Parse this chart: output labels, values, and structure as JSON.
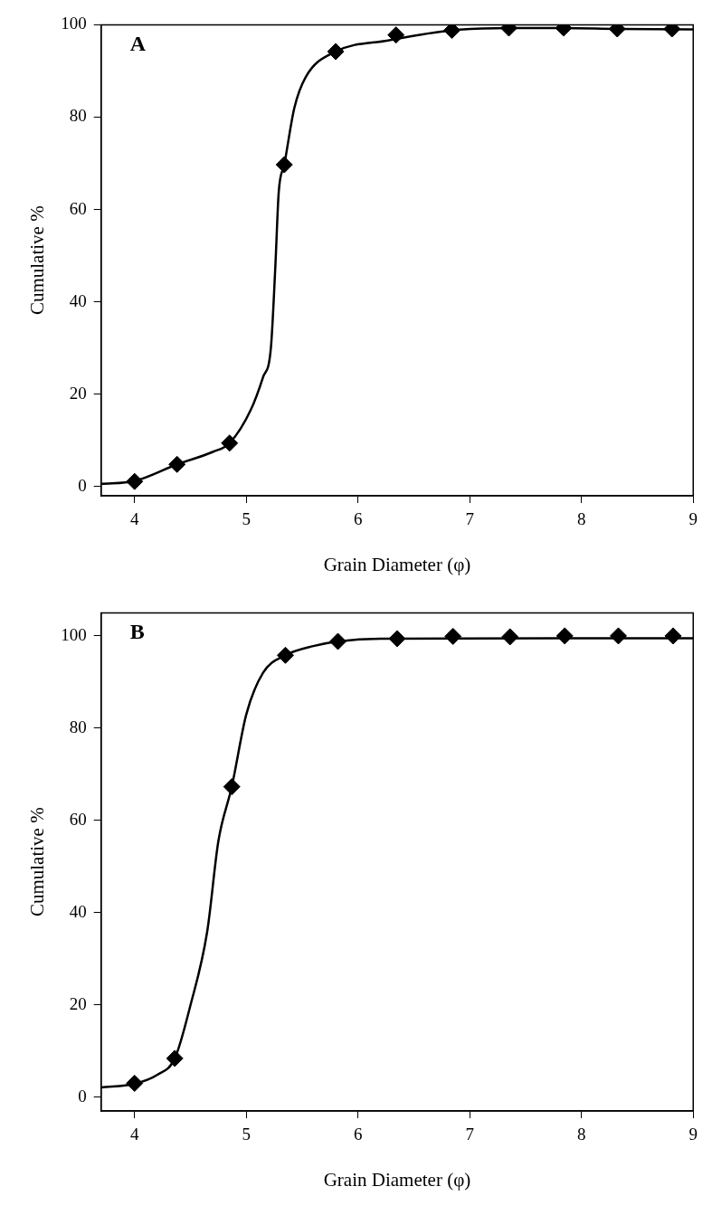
{
  "chart_data": [
    {
      "type": "scatter",
      "xlabel": "Grain Diameter (φ)",
      "ylabel": "Cumulative %",
      "annotations": [
        "A"
      ],
      "xlim": [
        3.7,
        9
      ],
      "xticks": [
        4,
        5,
        6,
        7,
        8,
        9
      ],
      "ylim": [
        -2,
        100
      ],
      "yticks": [
        0,
        20,
        40,
        60,
        80,
        100
      ],
      "grid": false,
      "legend": false,
      "marker": "diamond",
      "series": [
        {
          "type": "scatter",
          "color": "#000000",
          "x": [
            4.0,
            4.38,
            4.85,
            5.34,
            5.8,
            6.34,
            6.84,
            7.35,
            7.84,
            8.32,
            8.81
          ],
          "values": [
            1.1,
            4.8,
            9.4,
            69.7,
            94.2,
            97.8,
            98.8,
            99.3,
            99.3,
            99.1,
            99.1
          ]
        },
        {
          "type": "line",
          "color": "#000000",
          "marker": "none",
          "x": [
            3.7,
            4.0,
            4.38,
            4.7,
            4.85,
            5.04,
            5.15,
            5.22,
            5.26,
            5.29,
            5.34,
            5.43,
            5.53,
            5.8,
            6.27,
            6.84,
            7.35,
            7.84,
            8.32,
            9.0
          ],
          "values": [
            0.6,
            1.2,
            4.8,
            7.5,
            9.4,
            16.6,
            23.7,
            30,
            47.7,
            63.7,
            69.7,
            82,
            88.6,
            94.2,
            96.6,
            98.8,
            99.3,
            99.3,
            99.1,
            99
          ]
        }
      ]
    },
    {
      "type": "scatter",
      "xlabel": "Grain Diameter (φ)",
      "ylabel": "Cumulative %",
      "annotations": [
        "B"
      ],
      "xlim": [
        3.7,
        9
      ],
      "xticks": [
        4,
        5,
        6,
        7,
        8,
        9
      ],
      "ylim": [
        -3,
        105
      ],
      "yticks": [
        0,
        20,
        40,
        60,
        80,
        100
      ],
      "grid": false,
      "legend": false,
      "marker": "diamond",
      "series": [
        {
          "type": "scatter",
          "color": "#000000",
          "x": [
            4.0,
            4.36,
            4.87,
            5.35,
            5.82,
            6.35,
            6.85,
            7.36,
            7.85,
            8.33,
            8.82
          ],
          "values": [
            3.0,
            8.4,
            67.3,
            95.8,
            98.8,
            99.4,
            99.9,
            99.8,
            100,
            100,
            100
          ]
        },
        {
          "type": "line",
          "color": "#000000",
          "marker": "none",
          "x": [
            3.7,
            4.0,
            4.2,
            4.36,
            4.5,
            4.65,
            4.75,
            4.87,
            5.0,
            5.15,
            5.35,
            5.6,
            5.82,
            6.2,
            9.0
          ],
          "values": [
            2.1,
            2.9,
            4.8,
            8.4,
            19.9,
            35.9,
            55.5,
            67.3,
            83,
            92,
            95.8,
            97.8,
            98.8,
            99.4,
            99.5
          ]
        }
      ]
    }
  ]
}
